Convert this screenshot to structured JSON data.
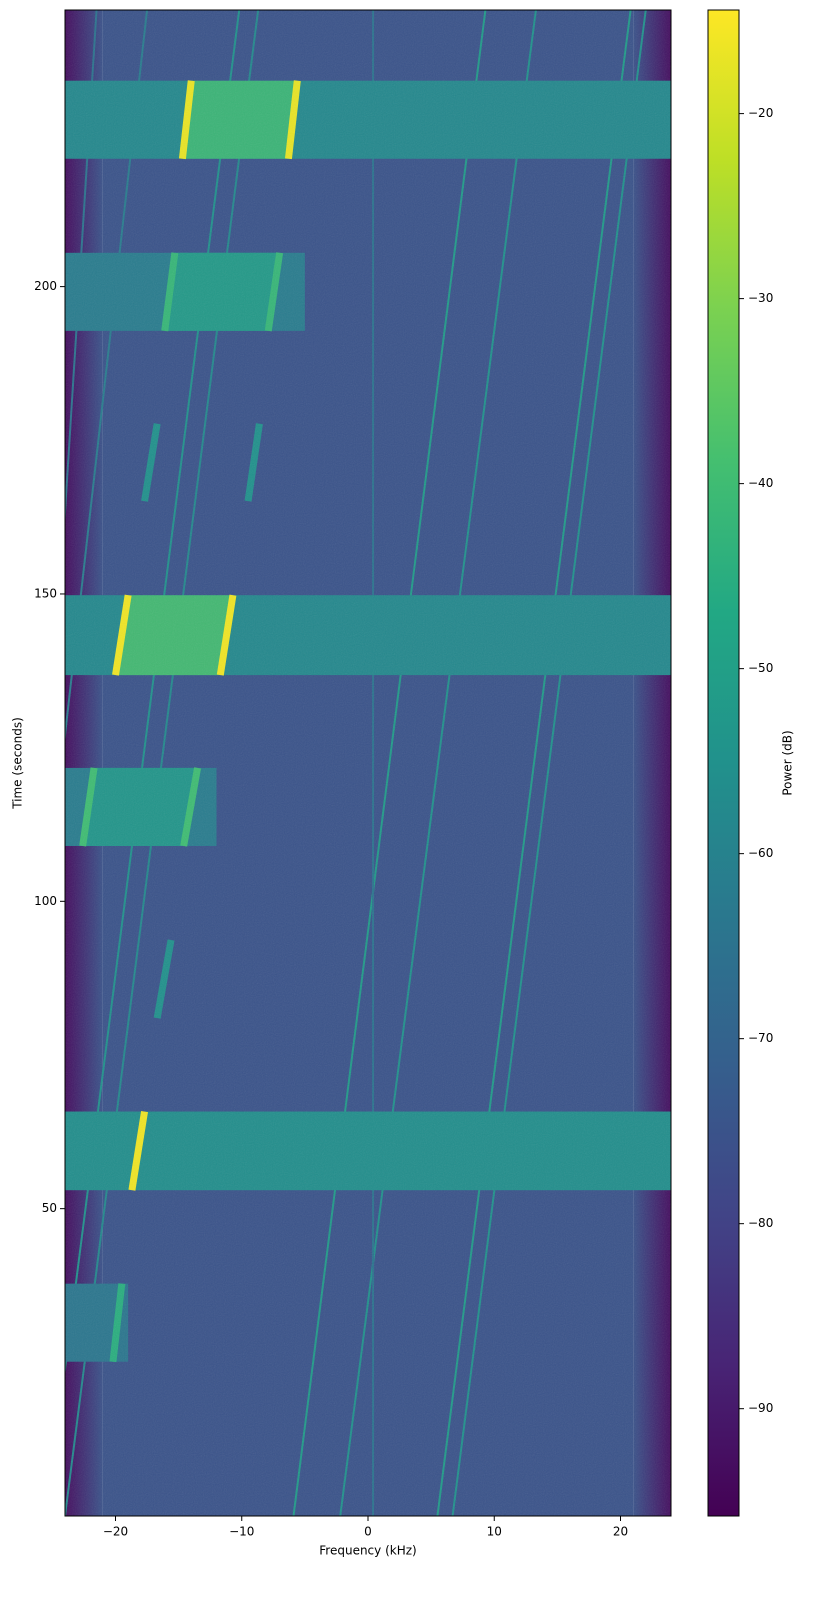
{
  "chart_data": {
    "type": "spectrogram",
    "xlabel": "Frequency (kHz)",
    "ylabel": "Time (seconds)",
    "colorbar_label": "Power (dB)",
    "colormap": "viridis",
    "xlim": [
      -24,
      24
    ],
    "ylim": [
      0,
      245
    ],
    "xticks": [
      {
        "value": -20,
        "label": "−20"
      },
      {
        "value": -10,
        "label": "−10"
      },
      0,
      10,
      20
    ],
    "yticks": [
      50,
      100,
      150,
      200
    ],
    "clim": [
      -95.8,
      -14.4
    ],
    "cticks": [
      {
        "value": -90,
        "label": "−90"
      },
      {
        "value": -80,
        "label": "−80"
      },
      {
        "value": -70,
        "label": "−70"
      },
      {
        "value": -60,
        "label": "−60"
      },
      {
        "value": -50,
        "label": "−50"
      },
      {
        "value": -40,
        "label": "−40"
      },
      {
        "value": -30,
        "label": "−30"
      },
      {
        "value": -20,
        "label": "−20"
      }
    ],
    "floor_power": -75,
    "passband": [
      -21,
      21
    ],
    "edge_power": -93,
    "bursts": [
      {
        "time": [
          220.8,
          233.5
        ],
        "extent": [
          -24,
          24
        ],
        "band_power": -58,
        "fill_power": -40,
        "edge_power": -17,
        "edges": [
          [
            -14.7,
            -14.0
          ],
          [
            -6.3,
            -5.6
          ]
        ]
      },
      {
        "time": [
          192.8,
          205.5
        ],
        "extent": [
          -24,
          -5
        ],
        "band_power": -62,
        "fill_power": -50,
        "edge_power": -42,
        "edges": [
          [
            -16.1,
            -15.3
          ],
          [
            -7.9,
            -7.0
          ]
        ]
      },
      {
        "time": [
          165.1,
          177.7
        ],
        "edge_power": -55,
        "edges": [
          [
            -17.7,
            -16.7
          ],
          [
            -9.5,
            -8.6
          ]
        ]
      },
      {
        "time": [
          136.8,
          149.8
        ],
        "extent": [
          -24,
          24
        ],
        "band_power": -58,
        "fill_power": -38,
        "edge_power": -16,
        "edges": [
          [
            -20.0,
            -19.0
          ],
          [
            -11.7,
            -10.7
          ]
        ]
      },
      {
        "time": [
          109.0,
          121.7
        ],
        "extent": [
          -24,
          -12
        ],
        "band_power": -62,
        "fill_power": -52,
        "edge_power": -40,
        "edges": [
          [
            -22.6,
            -21.7
          ],
          [
            -14.6,
            -13.5
          ]
        ]
      },
      {
        "time": [
          81.0,
          93.7
        ],
        "edge_power": -55,
        "edges": [
          [
            -16.7,
            -15.6
          ]
        ]
      },
      {
        "time": [
          53.0,
          65.8
        ],
        "extent": [
          -24,
          24
        ],
        "band_power": -56,
        "edge_power": -16,
        "edges": [
          [
            -18.7,
            -17.7
          ]
        ]
      },
      {
        "time": [
          25.1,
          37.8
        ],
        "extent": [
          -24,
          -19
        ],
        "band_power": -64,
        "edge_power": -45,
        "edges": [
          [
            -20.2,
            -19.5
          ]
        ]
      }
    ],
    "tones": [
      {
        "freq": [
          -5.9,
          9.3
        ],
        "power": -52
      },
      {
        "freq": [
          -2.2,
          13.3
        ],
        "power": -55
      },
      {
        "freq": [
          5.5,
          20.8
        ],
        "power": -52
      },
      {
        "freq": [
          6.7,
          22.0
        ],
        "power": -55
      },
      {
        "freq": [
          -25.5,
          -10.2
        ],
        "power": -55
      },
      {
        "freq": [
          -24.0,
          -8.7
        ],
        "power": -58
      },
      {
        "freq": [
          -31.0,
          -17.5
        ],
        "power": -62
      },
      {
        "freq": [
          -29.0,
          -21.5
        ],
        "power": -65
      },
      {
        "freq": [
          0.4,
          0.4
        ],
        "power": -65
      }
    ]
  }
}
